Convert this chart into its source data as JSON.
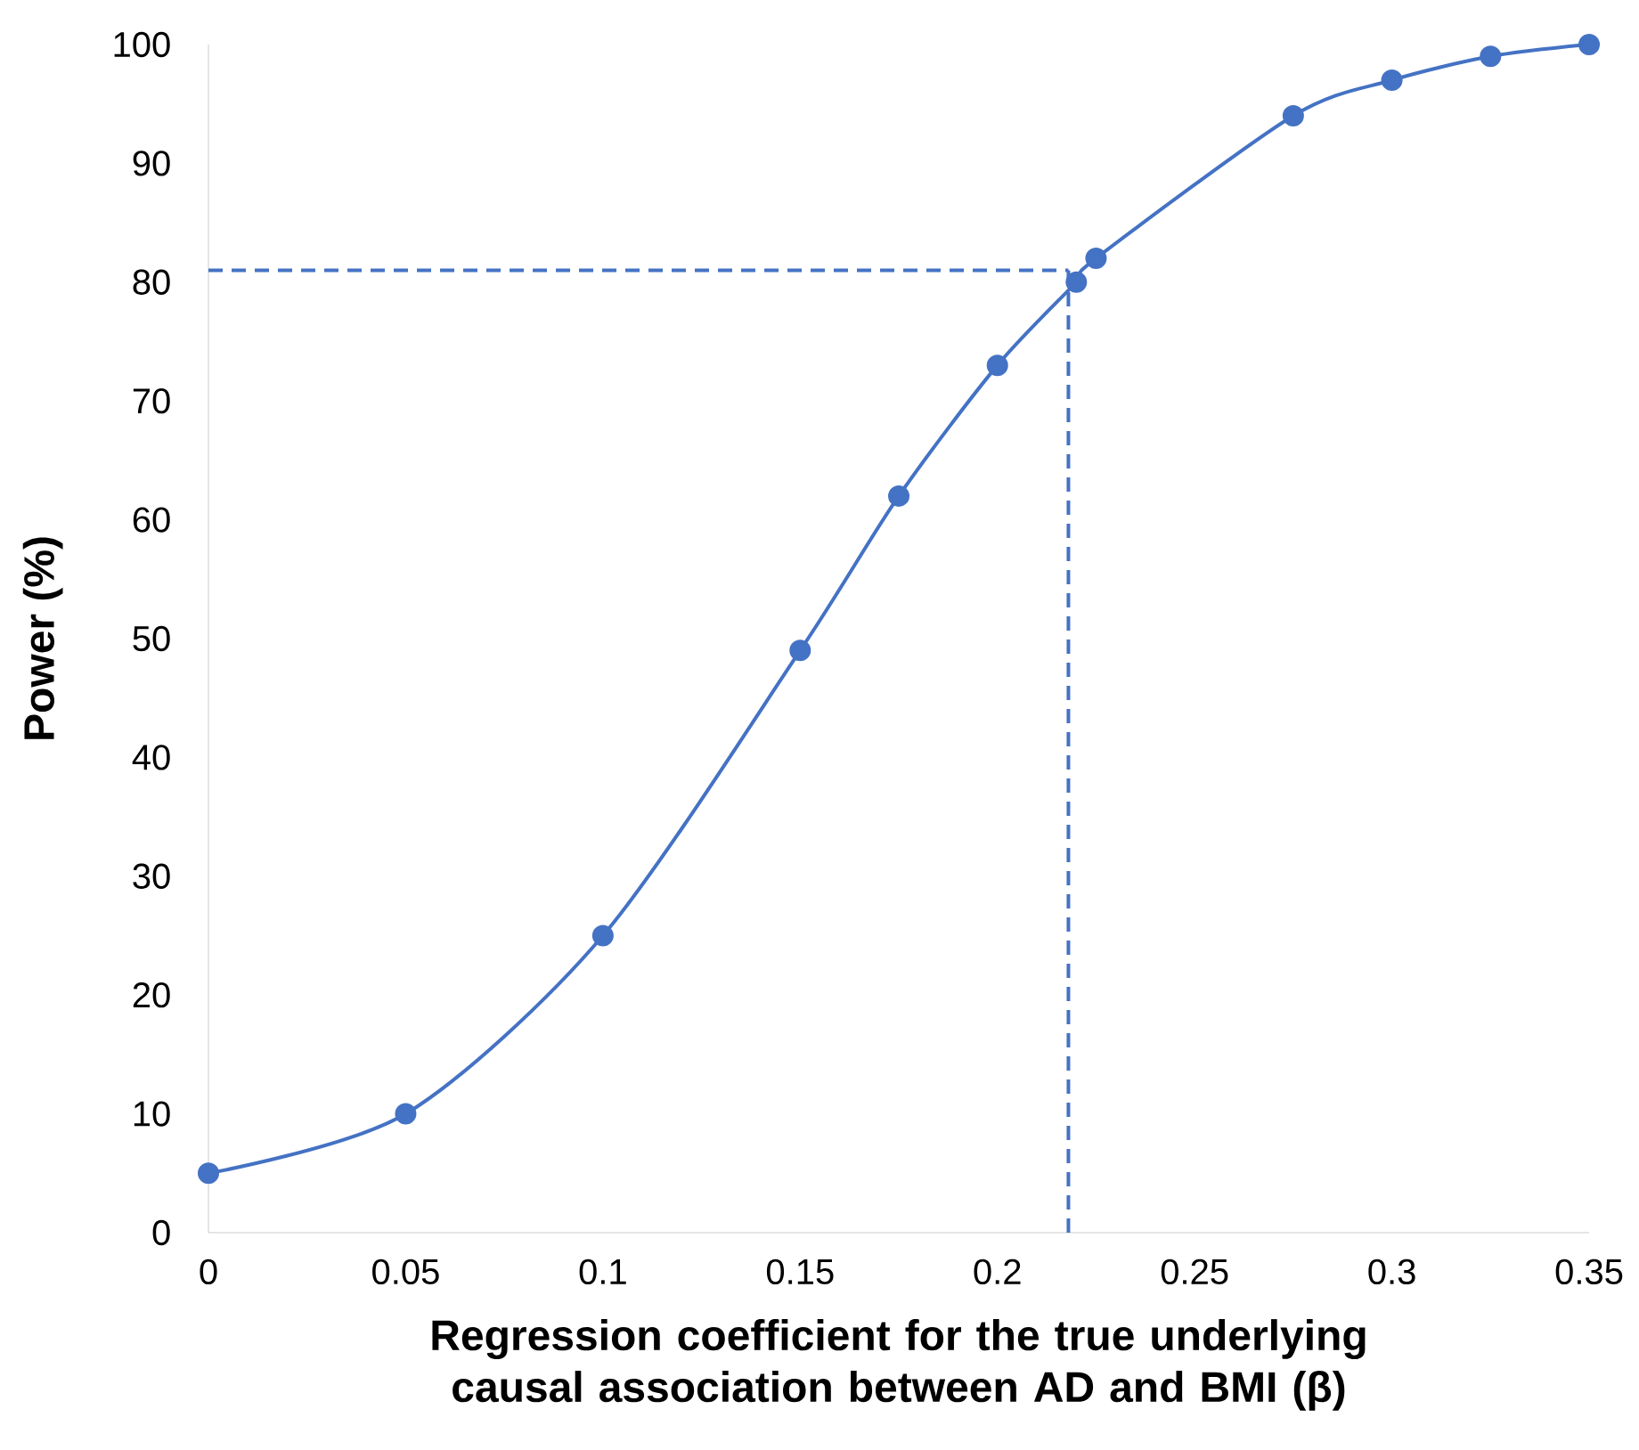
{
  "chart_data": {
    "type": "line",
    "xlabel": "Regression coefficient for the true underlying causal association between AD and BMI (β)",
    "ylabel": "Power (%)",
    "x": [
      0,
      0.05,
      0.1,
      0.15,
      0.175,
      0.2,
      0.22,
      0.225,
      0.275,
      0.3,
      0.325,
      0.35
    ],
    "series": [
      {
        "color": "#4472c4",
        "values": [
          5,
          10,
          25,
          49,
          62,
          73,
          80,
          82,
          94,
          97,
          99,
          100
        ]
      }
    ],
    "xlim": [
      0,
      0.35
    ],
    "xticks": [
      0,
      0.05,
      0.1,
      0.15,
      0.2,
      0.25,
      0.3,
      0.35
    ],
    "ylim": [
      0,
      100
    ],
    "yticks": [
      0,
      10,
      20,
      30,
      40,
      50,
      60,
      70,
      80,
      90,
      100
    ],
    "grid": false,
    "marker": "circle",
    "line_style": "solid",
    "ref_lines": [
      {
        "axis": "y",
        "value": 81,
        "color": "#4472c4",
        "line_style": "dashed"
      },
      {
        "axis": "x",
        "value": 0.218,
        "color": "#4472c4",
        "line_style": "dashed"
      }
    ]
  }
}
